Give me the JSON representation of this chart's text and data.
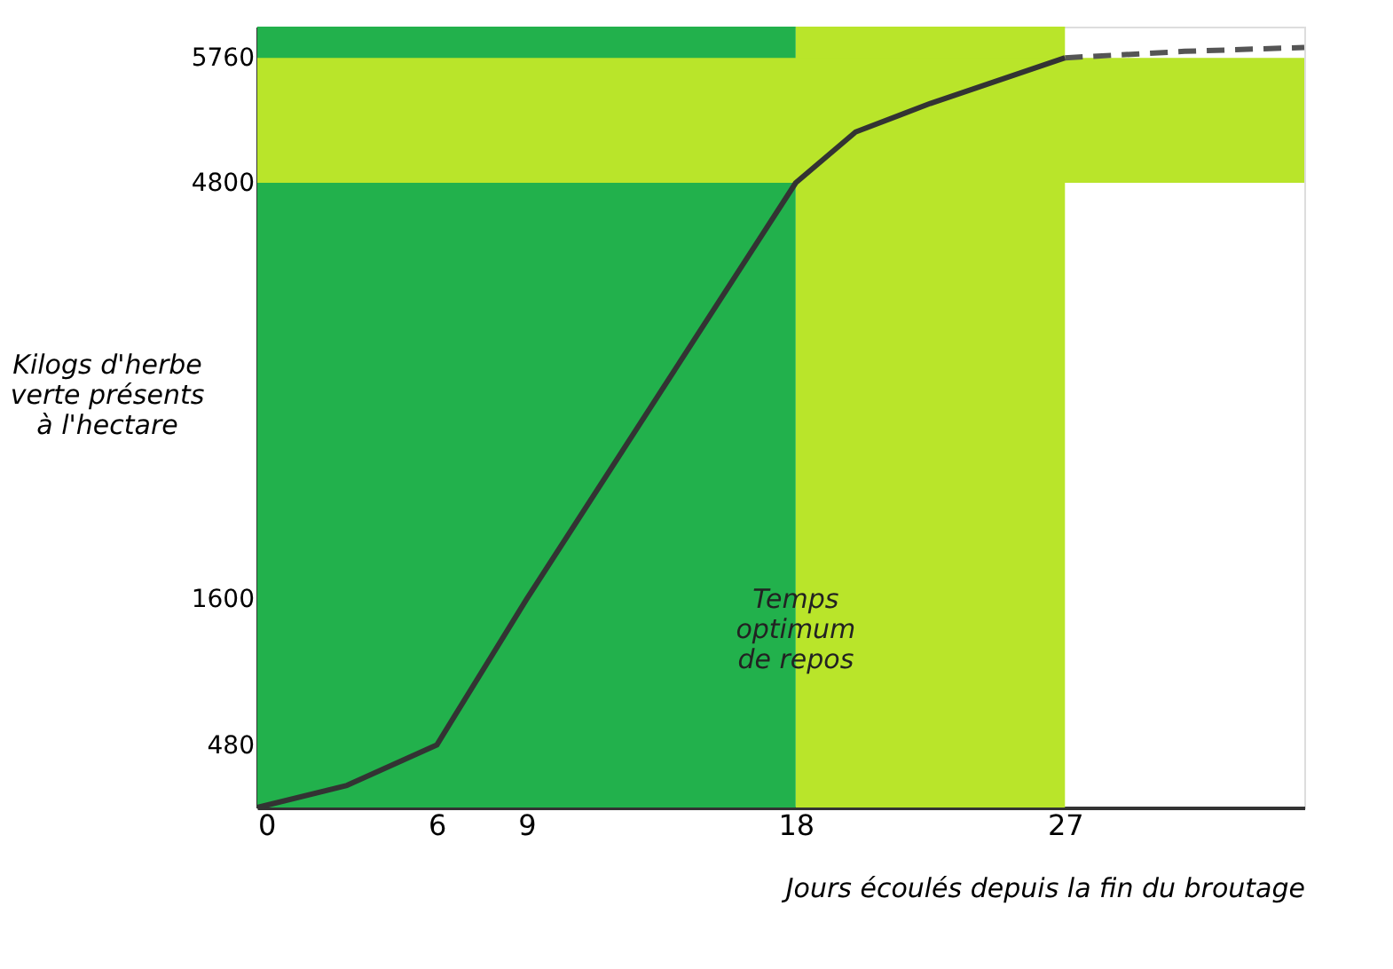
{
  "chart_data": {
    "type": "line",
    "xlabel": "Jours écoulés depuis la fin du broutage",
    "ylabel": "Kilogs d'herbe\nverte présents\nà l'hectare",
    "xlim": [
      0,
      35
    ],
    "ylim": [
      0,
      6000
    ],
    "xticks": [
      0,
      6,
      9,
      18,
      27
    ],
    "yticks": [
      480,
      1600,
      4800,
      5760
    ],
    "series": [
      {
        "color": "#333333",
        "line_style": "solid",
        "x": [
          0,
          3,
          6,
          9,
          13.5,
          18,
          20,
          22.5,
          27
        ],
        "values": [
          0,
          170,
          480,
          1600,
          3200,
          4800,
          5190,
          5410,
          5760
        ]
      },
      {
        "color": "#555555",
        "line_style": "dashed",
        "x": [
          27,
          31,
          35
        ],
        "values": [
          5760,
          5810,
          5840
        ]
      }
    ],
    "bands": [
      {
        "axis": "x",
        "from": 0,
        "to": 18,
        "color": "#22b14c"
      },
      {
        "axis": "x",
        "from": 18,
        "to": 27,
        "color": "#b9e52a"
      },
      {
        "axis": "y",
        "from": 4800,
        "to": 5760,
        "color": "#b9e52a"
      }
    ],
    "annotations": [
      {
        "text": "Temps\noptimum\nde repos",
        "x": 18,
        "y": 1600
      }
    ]
  }
}
